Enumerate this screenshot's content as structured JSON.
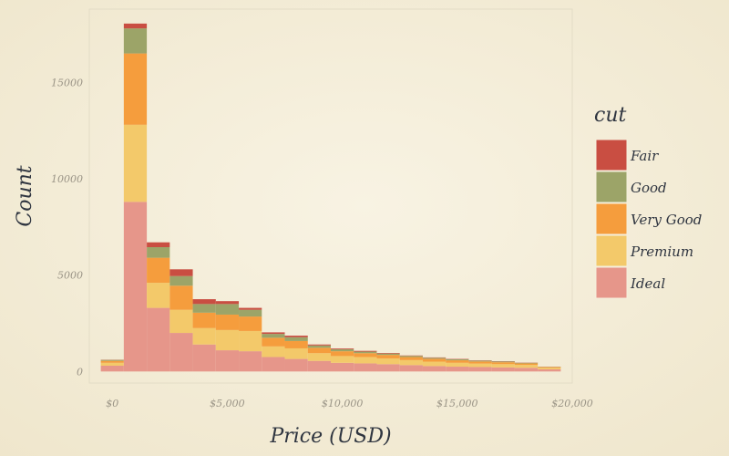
{
  "chart_data": {
    "type": "bar",
    "stacked": true,
    "xlabel": "Price (USD)",
    "ylabel": "Count",
    "xlim": [
      -1000,
      20000
    ],
    "ylim": [
      -600,
      18800
    ],
    "x_ticks": [
      {
        "value": 0,
        "label": "$0"
      },
      {
        "value": 5000,
        "label": "$5,000"
      },
      {
        "value": 10000,
        "label": "$10,000"
      },
      {
        "value": 15000,
        "label": "$15,000"
      },
      {
        "value": 20000,
        "label": "$20,000"
      }
    ],
    "y_ticks": [
      {
        "value": 0,
        "label": "0"
      },
      {
        "value": 5000,
        "label": "5000"
      },
      {
        "value": 10000,
        "label": "10000"
      },
      {
        "value": 15000,
        "label": "15000"
      }
    ],
    "bin_width": 1000,
    "bin_centers": [
      0,
      1000,
      2000,
      3000,
      4000,
      5000,
      6000,
      7000,
      8000,
      9000,
      10000,
      11000,
      12000,
      13000,
      14000,
      15000,
      16000,
      17000,
      18000,
      19000
    ],
    "grid": false,
    "legend_title": "cut",
    "legend_position": "right",
    "series": [
      {
        "name": "Ideal",
        "color": "#e6968a",
        "values": [
          300,
          8800,
          3300,
          2000,
          1400,
          1100,
          1050,
          750,
          650,
          550,
          450,
          420,
          380,
          330,
          280,
          250,
          230,
          210,
          190,
          110
        ]
      },
      {
        "name": "Premium",
        "color": "#f3c96a",
        "values": [
          150,
          4000,
          1300,
          1200,
          850,
          1050,
          1050,
          550,
          550,
          400,
          350,
          330,
          300,
          260,
          230,
          200,
          180,
          170,
          150,
          80
        ]
      },
      {
        "name": "Very Good",
        "color": "#f59d3d",
        "values": [
          100,
          3700,
          1300,
          1250,
          800,
          800,
          750,
          450,
          380,
          280,
          250,
          200,
          180,
          160,
          150,
          130,
          110,
          100,
          80,
          40
        ]
      },
      {
        "name": "Good",
        "color": "#9ca468",
        "values": [
          50,
          1300,
          550,
          500,
          450,
          550,
          350,
          200,
          200,
          120,
          100,
          80,
          70,
          60,
          50,
          50,
          40,
          40,
          30,
          15
        ]
      },
      {
        "name": "Fair",
        "color": "#c94e42",
        "values": [
          10,
          250,
          250,
          350,
          250,
          150,
          100,
          80,
          80,
          50,
          40,
          40,
          30,
          20,
          20,
          20,
          15,
          15,
          10,
          5
        ]
      }
    ]
  }
}
